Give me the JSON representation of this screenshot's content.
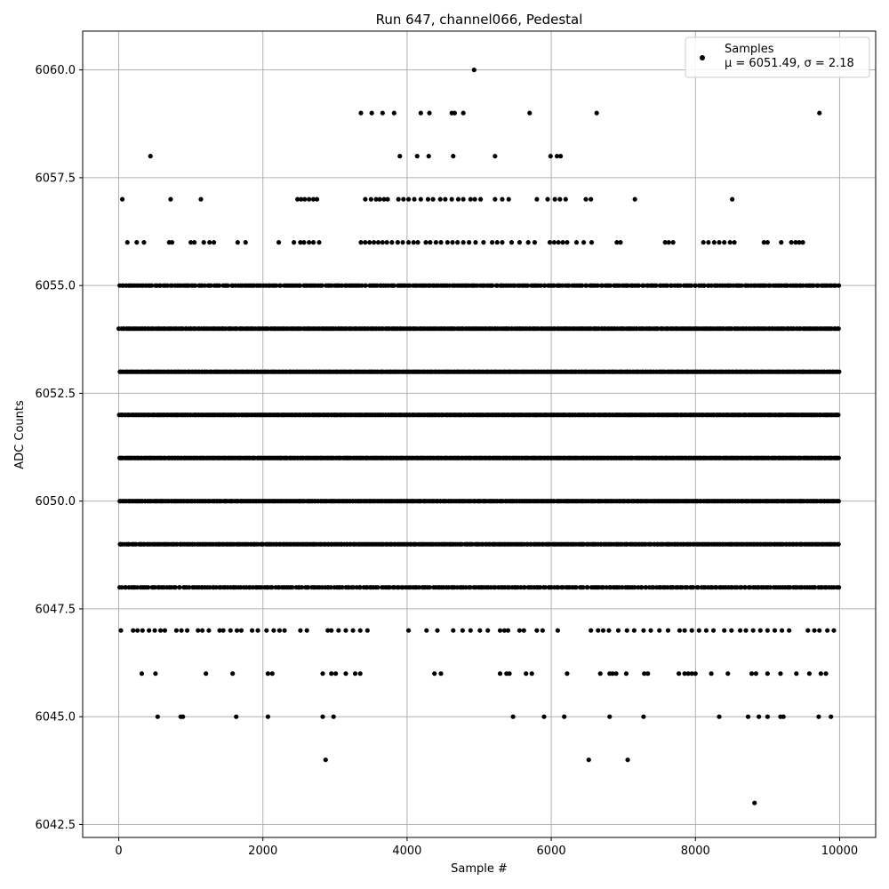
{
  "chart_data": {
    "type": "scatter",
    "title": "Run 647, channel066, Pedestal",
    "xlabel": "Sample #",
    "ylabel": "ADC Counts",
    "xlim": [
      -500,
      10500
    ],
    "ylim": [
      6042.2,
      6060.9
    ],
    "x_ticks": [
      0,
      2000,
      4000,
      6000,
      8000,
      10000
    ],
    "x_tick_labels": [
      "0",
      "2000",
      "4000",
      "6000",
      "8000",
      "10000"
    ],
    "y_ticks": [
      6042.5,
      6045.0,
      6047.5,
      6050.0,
      6052.5,
      6055.0,
      6057.5,
      6060.0
    ],
    "y_tick_labels": [
      "6042.5",
      "6045.0",
      "6047.5",
      "6050.0",
      "6052.5",
      "6055.0",
      "6057.5",
      "6060.0"
    ],
    "grid": true,
    "legend_position": "top-right",
    "legend": {
      "label_line1": "Samples",
      "label_line2": "μ = 6051.49, σ = 2.18"
    },
    "marker_color": "#000000",
    "series": [
      {
        "name": "Samples",
        "dense_levels": [
          {
            "y": 6048,
            "x_range": [
              0,
              10000
            ],
            "count": 320
          },
          {
            "y": 6049,
            "x_range": [
              0,
              10000
            ],
            "count": 420
          },
          {
            "y": 6050,
            "x_range": [
              0,
              10000
            ],
            "count": 520
          },
          {
            "y": 6051,
            "x_range": [
              0,
              10000
            ],
            "count": 540
          },
          {
            "y": 6052,
            "x_range": [
              0,
              10000
            ],
            "count": 540
          },
          {
            "y": 6053,
            "x_range": [
              0,
              10000
            ],
            "count": 520
          },
          {
            "y": 6054,
            "x_range": [
              0,
              10000
            ],
            "count": 440
          },
          {
            "y": 6055,
            "x_range": [
              0,
              10000
            ],
            "count": 330
          }
        ],
        "points": [
          [
            30,
            6047
          ],
          [
            200,
            6047
          ],
          [
            260,
            6047
          ],
          [
            330,
            6047
          ],
          [
            420,
            6047
          ],
          [
            500,
            6047
          ],
          [
            580,
            6047
          ],
          [
            640,
            6047
          ],
          [
            800,
            6047
          ],
          [
            870,
            6047
          ],
          [
            950,
            6047
          ],
          [
            1100,
            6047
          ],
          [
            1160,
            6047
          ],
          [
            1250,
            6047
          ],
          [
            1400,
            6047
          ],
          [
            1450,
            6047
          ],
          [
            1550,
            6047
          ],
          [
            1640,
            6047
          ],
          [
            1700,
            6047
          ],
          [
            1850,
            6047
          ],
          [
            1930,
            6047
          ],
          [
            2050,
            6047
          ],
          [
            2150,
            6047
          ],
          [
            2230,
            6047
          ],
          [
            2300,
            6047
          ],
          [
            2520,
            6047
          ],
          [
            2610,
            6047
          ],
          [
            2900,
            6047
          ],
          [
            2950,
            6047
          ],
          [
            3050,
            6047
          ],
          [
            3150,
            6047
          ],
          [
            3250,
            6047
          ],
          [
            3350,
            6047
          ],
          [
            3450,
            6047
          ],
          [
            4020,
            6047
          ],
          [
            4270,
            6047
          ],
          [
            4420,
            6047
          ],
          [
            4640,
            6047
          ],
          [
            4770,
            6047
          ],
          [
            4880,
            6047
          ],
          [
            5010,
            6047
          ],
          [
            5120,
            6047
          ],
          [
            5290,
            6047
          ],
          [
            5350,
            6047
          ],
          [
            5400,
            6047
          ],
          [
            5560,
            6047
          ],
          [
            5620,
            6047
          ],
          [
            5800,
            6047
          ],
          [
            5880,
            6047
          ],
          [
            6090,
            6047
          ],
          [
            6550,
            6047
          ],
          [
            6650,
            6047
          ],
          [
            6720,
            6047
          ],
          [
            6800,
            6047
          ],
          [
            6930,
            6047
          ],
          [
            7050,
            6047
          ],
          [
            7150,
            6047
          ],
          [
            7280,
            6047
          ],
          [
            7380,
            6047
          ],
          [
            7500,
            6047
          ],
          [
            7620,
            6047
          ],
          [
            7780,
            6047
          ],
          [
            7850,
            6047
          ],
          [
            7950,
            6047
          ],
          [
            8050,
            6047
          ],
          [
            8150,
            6047
          ],
          [
            8250,
            6047
          ],
          [
            8400,
            6047
          ],
          [
            8500,
            6047
          ],
          [
            8620,
            6047
          ],
          [
            8700,
            6047
          ],
          [
            8800,
            6047
          ],
          [
            8900,
            6047
          ],
          [
            9000,
            6047
          ],
          [
            9100,
            6047
          ],
          [
            9200,
            6047
          ],
          [
            9300,
            6047
          ],
          [
            9560,
            6047
          ],
          [
            9650,
            6047
          ],
          [
            9720,
            6047
          ],
          [
            9830,
            6047
          ],
          [
            9920,
            6047
          ],
          [
            320,
            6046
          ],
          [
            510,
            6046
          ],
          [
            1210,
            6046
          ],
          [
            1580,
            6046
          ],
          [
            2070,
            6046
          ],
          [
            2130,
            6046
          ],
          [
            2830,
            6046
          ],
          [
            2950,
            6046
          ],
          [
            3010,
            6046
          ],
          [
            3150,
            6046
          ],
          [
            3280,
            6046
          ],
          [
            3350,
            6046
          ],
          [
            4380,
            6046
          ],
          [
            4470,
            6046
          ],
          [
            5290,
            6046
          ],
          [
            5380,
            6046
          ],
          [
            5420,
            6046
          ],
          [
            5650,
            6046
          ],
          [
            5730,
            6046
          ],
          [
            6220,
            6046
          ],
          [
            6680,
            6046
          ],
          [
            6810,
            6046
          ],
          [
            6850,
            6046
          ],
          [
            6900,
            6046
          ],
          [
            7040,
            6046
          ],
          [
            7290,
            6046
          ],
          [
            7340,
            6046
          ],
          [
            7770,
            6046
          ],
          [
            7850,
            6046
          ],
          [
            7900,
            6046
          ],
          [
            7950,
            6046
          ],
          [
            8000,
            6046
          ],
          [
            8220,
            6046
          ],
          [
            8450,
            6046
          ],
          [
            8780,
            6046
          ],
          [
            8840,
            6046
          ],
          [
            9000,
            6046
          ],
          [
            9180,
            6046
          ],
          [
            9400,
            6046
          ],
          [
            9580,
            6046
          ],
          [
            9740,
            6046
          ],
          [
            9810,
            6046
          ],
          [
            540,
            6045
          ],
          [
            860,
            6045
          ],
          [
            890,
            6045
          ],
          [
            1630,
            6045
          ],
          [
            2070,
            6045
          ],
          [
            2830,
            6045
          ],
          [
            2980,
            6045
          ],
          [
            5470,
            6045
          ],
          [
            5900,
            6045
          ],
          [
            6180,
            6045
          ],
          [
            6810,
            6045
          ],
          [
            7280,
            6045
          ],
          [
            8330,
            6045
          ],
          [
            8730,
            6045
          ],
          [
            8880,
            6045
          ],
          [
            9000,
            6045
          ],
          [
            9180,
            6045
          ],
          [
            9220,
            6045
          ],
          [
            9710,
            6045
          ],
          [
            9880,
            6045
          ],
          [
            2870,
            6044
          ],
          [
            6520,
            6044
          ],
          [
            7060,
            6044
          ],
          [
            8820,
            6043
          ],
          [
            50,
            6057
          ],
          [
            720,
            6057
          ],
          [
            1140,
            6057
          ],
          [
            2480,
            6057
          ],
          [
            2530,
            6057
          ],
          [
            2580,
            6057
          ],
          [
            2640,
            6057
          ],
          [
            2700,
            6057
          ],
          [
            2750,
            6057
          ],
          [
            3420,
            6057
          ],
          [
            3500,
            6057
          ],
          [
            3570,
            6057
          ],
          [
            3620,
            6057
          ],
          [
            3680,
            6057
          ],
          [
            3730,
            6057
          ],
          [
            3880,
            6057
          ],
          [
            3950,
            6057
          ],
          [
            4020,
            6057
          ],
          [
            4100,
            6057
          ],
          [
            4190,
            6057
          ],
          [
            4290,
            6057
          ],
          [
            4360,
            6057
          ],
          [
            4460,
            6057
          ],
          [
            4530,
            6057
          ],
          [
            4620,
            6057
          ],
          [
            4710,
            6057
          ],
          [
            4780,
            6057
          ],
          [
            4880,
            6057
          ],
          [
            4940,
            6057
          ],
          [
            5020,
            6057
          ],
          [
            5220,
            6057
          ],
          [
            5320,
            6057
          ],
          [
            5410,
            6057
          ],
          [
            5800,
            6057
          ],
          [
            5950,
            6057
          ],
          [
            6050,
            6057
          ],
          [
            6120,
            6057
          ],
          [
            6200,
            6057
          ],
          [
            6480,
            6057
          ],
          [
            6550,
            6057
          ],
          [
            7160,
            6057
          ],
          [
            8510,
            6057
          ],
          [
            120,
            6056
          ],
          [
            250,
            6056
          ],
          [
            350,
            6056
          ],
          [
            700,
            6056
          ],
          [
            740,
            6056
          ],
          [
            1000,
            6056
          ],
          [
            1050,
            6056
          ],
          [
            1180,
            6056
          ],
          [
            1260,
            6056
          ],
          [
            1320,
            6056
          ],
          [
            1650,
            6056
          ],
          [
            1760,
            6056
          ],
          [
            2220,
            6056
          ],
          [
            2430,
            6056
          ],
          [
            2520,
            6056
          ],
          [
            2570,
            6056
          ],
          [
            2640,
            6056
          ],
          [
            2700,
            6056
          ],
          [
            2780,
            6056
          ],
          [
            3360,
            6056
          ],
          [
            3420,
            6056
          ],
          [
            3480,
            6056
          ],
          [
            3540,
            6056
          ],
          [
            3600,
            6056
          ],
          [
            3660,
            6056
          ],
          [
            3720,
            6056
          ],
          [
            3790,
            6056
          ],
          [
            3870,
            6056
          ],
          [
            3940,
            6056
          ],
          [
            4020,
            6056
          ],
          [
            4090,
            6056
          ],
          [
            4150,
            6056
          ],
          [
            4260,
            6056
          ],
          [
            4320,
            6056
          ],
          [
            4400,
            6056
          ],
          [
            4470,
            6056
          ],
          [
            4560,
            6056
          ],
          [
            4630,
            6056
          ],
          [
            4700,
            6056
          ],
          [
            4780,
            6056
          ],
          [
            4860,
            6056
          ],
          [
            4950,
            6056
          ],
          [
            5060,
            6056
          ],
          [
            5180,
            6056
          ],
          [
            5250,
            6056
          ],
          [
            5320,
            6056
          ],
          [
            5450,
            6056
          ],
          [
            5560,
            6056
          ],
          [
            5680,
            6056
          ],
          [
            5770,
            6056
          ],
          [
            5980,
            6056
          ],
          [
            6040,
            6056
          ],
          [
            6100,
            6056
          ],
          [
            6160,
            6056
          ],
          [
            6220,
            6056
          ],
          [
            6350,
            6056
          ],
          [
            6450,
            6056
          ],
          [
            6560,
            6056
          ],
          [
            6910,
            6056
          ],
          [
            6960,
            6056
          ],
          [
            7580,
            6056
          ],
          [
            7630,
            6056
          ],
          [
            7690,
            6056
          ],
          [
            8110,
            6056
          ],
          [
            8180,
            6056
          ],
          [
            8260,
            6056
          ],
          [
            8330,
            6056
          ],
          [
            8400,
            6056
          ],
          [
            8480,
            6056
          ],
          [
            8540,
            6056
          ],
          [
            8950,
            6056
          ],
          [
            9000,
            6056
          ],
          [
            9190,
            6056
          ],
          [
            9330,
            6056
          ],
          [
            9390,
            6056
          ],
          [
            9440,
            6056
          ],
          [
            9490,
            6056
          ],
          [
            440,
            6058
          ],
          [
            3900,
            6058
          ],
          [
            4140,
            6058
          ],
          [
            4300,
            6058
          ],
          [
            4640,
            6058
          ],
          [
            5220,
            6058
          ],
          [
            5990,
            6058
          ],
          [
            6080,
            6058
          ],
          [
            6130,
            6058
          ],
          [
            3360,
            6059
          ],
          [
            3510,
            6059
          ],
          [
            3660,
            6059
          ],
          [
            3820,
            6059
          ],
          [
            4190,
            6059
          ],
          [
            4310,
            6059
          ],
          [
            4620,
            6059
          ],
          [
            4660,
            6059
          ],
          [
            4780,
            6059
          ],
          [
            5700,
            6059
          ],
          [
            6630,
            6059
          ],
          [
            9720,
            6059
          ],
          [
            4930,
            6060
          ]
        ]
      }
    ]
  }
}
